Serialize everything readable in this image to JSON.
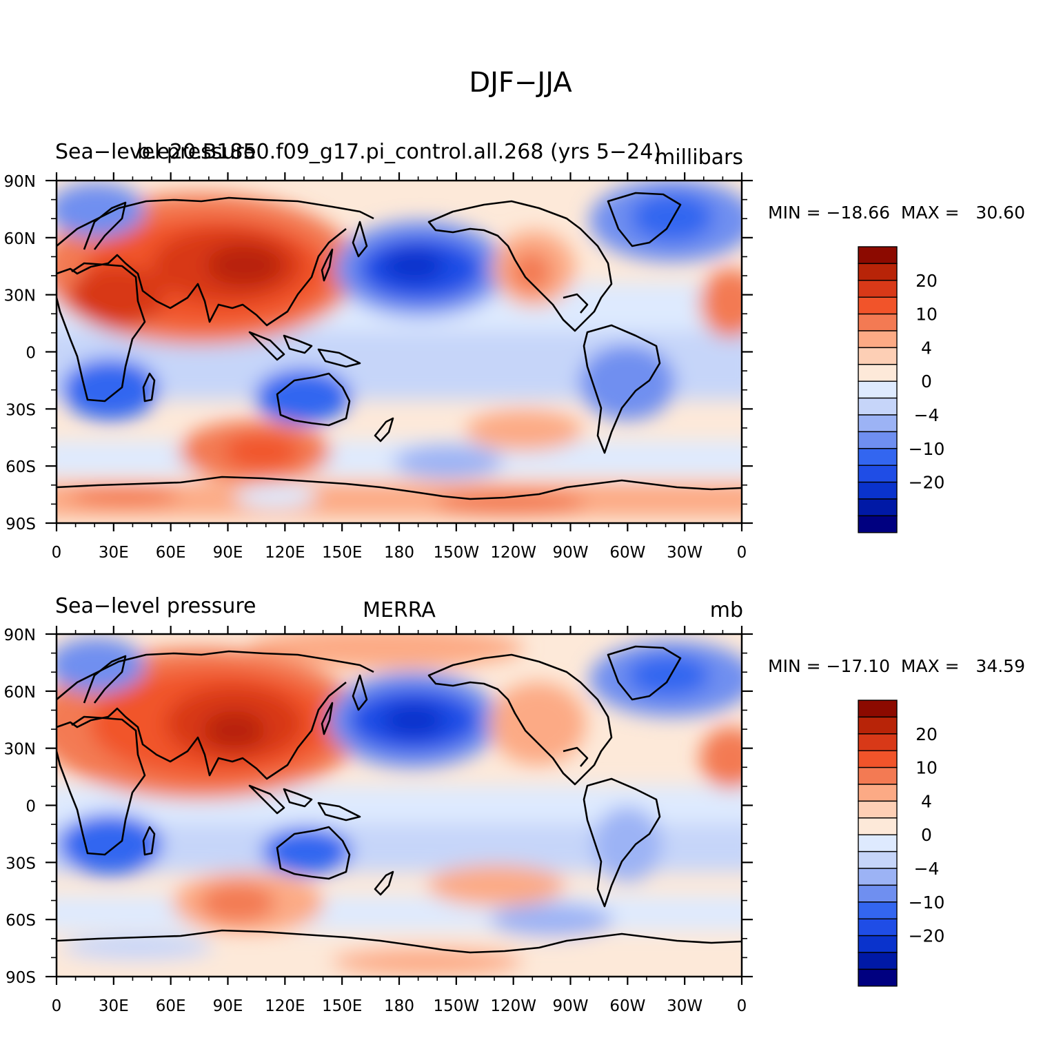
{
  "figure": {
    "title": "DJF−JJA",
    "colors": {
      "levels": [
        "#000080",
        "#0019a6",
        "#0a33cc",
        "#1f4de6",
        "#3366f0",
        "#6f8ff0",
        "#9cb3f5",
        "#c6d5f9",
        "#deeafe",
        "#fde9d9",
        "#fdcfb5",
        "#fcaa85",
        "#f37a53",
        "#f1542a",
        "#d83918",
        "#b82408",
        "#8c0a00"
      ],
      "ocean_positive_weak": "#fde9d9",
      "ocean_negative_weak": "#deeafe",
      "coast": "#000000"
    }
  },
  "colorbar": {
    "labels": [
      "20",
      "10",
      "4",
      "0",
      "−4",
      "−10",
      "−20"
    ]
  },
  "x_ticks": [
    "0",
    "30E",
    "60E",
    "90E",
    "120E",
    "150E",
    "180",
    "150W",
    "120W",
    "90W",
    "60W",
    "30W",
    "0"
  ],
  "y_ticks": [
    "90N",
    "60N",
    "30N",
    "0",
    "30S",
    "60S",
    "90S"
  ],
  "panels": [
    {
      "left_title": "Sea−level pressure",
      "center_title": "b.e20.B1850.f09_g17.pi_control.all.268 (yrs 5−24)",
      "units": "millibars",
      "stats": "MIN = −18.66  MAX =   30.60",
      "min": -18.66,
      "max": 30.6
    },
    {
      "left_title": "Sea−level pressure",
      "center_title": "MERRA",
      "units": "mb",
      "stats": "MIN = −17.10  MAX =   34.59",
      "min": -17.1,
      "max": 34.59
    }
  ]
}
